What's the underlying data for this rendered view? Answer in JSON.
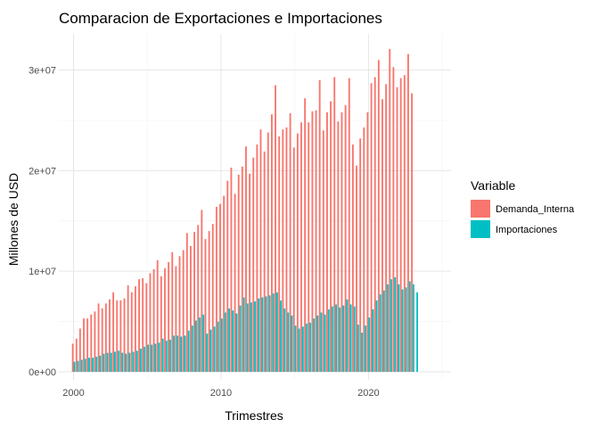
{
  "chart_data": {
    "type": "bar",
    "title": "Comparacion de Exportaciones e Importaciones",
    "xlabel": "Trimestres",
    "ylabel": "Millones de USD",
    "x_ticks": [
      2000,
      2010,
      2020
    ],
    "x_tick_labels": [
      "2000",
      "2010",
      "2020"
    ],
    "xlim": [
      1999.0,
      2025.6
    ],
    "y_ticks": [
      0,
      10000000,
      20000000,
      30000000
    ],
    "y_tick_labels": [
      "0e+00",
      "1e+07",
      "2e+07",
      "3e+07"
    ],
    "ylim": [
      -800000,
      33600000
    ],
    "grid": true,
    "legend": {
      "title": "Variable",
      "placement": "right"
    },
    "x_start": 2000.0,
    "x_step": 0.25,
    "series": [
      {
        "name": "Demanda_Interna",
        "color": "#F8766D",
        "values": [
          2800000,
          3300000,
          4300000,
          5300000,
          5300000,
          5700000,
          6000000,
          6800000,
          6300000,
          6800000,
          7200000,
          7900000,
          7100000,
          7100000,
          7300000,
          8600000,
          7900000,
          8500000,
          9200000,
          9300000,
          8800000,
          9800000,
          10200000,
          11100000,
          9500000,
          10300000,
          10900000,
          11900000,
          10500000,
          11500000,
          12100000,
          13800000,
          12500000,
          13900000,
          14600000,
          16100000,
          13200000,
          14000000,
          14700000,
          16400000,
          16700000,
          17500000,
          19000000,
          20300000,
          17700000,
          19600000,
          20400000,
          22400000,
          19700000,
          21300000,
          22600000,
          24100000,
          21900000,
          23800000,
          25600000,
          28500000,
          23400000,
          24100000,
          24300000,
          25700000,
          22300000,
          23700000,
          24800000,
          27200000,
          24800000,
          25900000,
          26000000,
          29000000,
          24000000,
          25800000,
          26900000,
          29300000,
          24900000,
          25800000,
          26500000,
          29200000,
          22600000,
          20500000,
          23200000,
          24300000,
          25800000,
          28700000,
          29300000,
          31000000,
          27100000,
          28600000,
          32100000,
          30300000,
          28300000,
          29200000,
          29500000,
          31600000,
          27700000
        ]
      },
      {
        "name": "Importaciones",
        "color": "#00BFC4",
        "values": [
          1000000,
          1100000,
          1200000,
          1300000,
          1400000,
          1400000,
          1500000,
          1600000,
          1800000,
          1900000,
          1900000,
          2000000,
          2100000,
          1900000,
          1800000,
          1900000,
          2000000,
          2100000,
          2300000,
          2500000,
          2700000,
          2700000,
          2800000,
          2900000,
          3300000,
          3100000,
          3200000,
          3600000,
          3600000,
          3500000,
          3600000,
          4100000,
          4600000,
          5100000,
          5400000,
          5700000,
          3800000,
          4200000,
          4500000,
          5000000,
          5300000,
          5900000,
          6300000,
          6100000,
          5800000,
          6600000,
          7400000,
          6800000,
          6900000,
          7000000,
          7300000,
          7400000,
          7500000,
          7600000,
          7800000,
          7900000,
          7100000,
          6300000,
          5900000,
          5600000,
          4600000,
          4300000,
          4500000,
          4800000,
          4900000,
          5300000,
          5600000,
          5900000,
          5700000,
          6200000,
          6500000,
          6700000,
          6400000,
          6600000,
          7200000,
          6700000,
          6500000,
          4700000,
          3900000,
          4600000,
          5400000,
          6200000,
          7100000,
          7700000,
          8100000,
          8700000,
          9200000,
          9400000,
          8700000,
          8200000,
          8400000,
          9000000,
          8700000,
          7900000
        ]
      }
    ]
  }
}
